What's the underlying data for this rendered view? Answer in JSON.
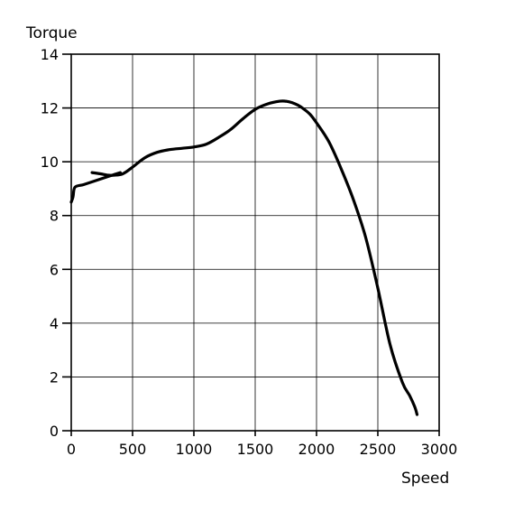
{
  "chart_data": {
    "type": "line",
    "xlabel": "Speed",
    "ylabel": "Torque",
    "xlim": [
      0,
      3000
    ],
    "ylim": [
      0,
      14
    ],
    "xticks": [
      0,
      500,
      1000,
      1500,
      2000,
      2500,
      3000
    ],
    "yticks": [
      0,
      2,
      4,
      6,
      8,
      10,
      12,
      14
    ],
    "grid": true,
    "line_color": "#000000",
    "series": [
      {
        "x": [
          170,
          240,
          300,
          350,
          420,
          500,
          600,
          700,
          800,
          900,
          1000,
          1100,
          1200,
          1300,
          1400,
          1500,
          1600,
          1700,
          1750,
          1800,
          1850,
          1900,
          1950,
          2000,
          2100,
          2200,
          2300,
          2400,
          2500,
          2600,
          2700,
          2760,
          2800,
          2820
        ],
        "y": [
          9.6,
          9.55,
          9.5,
          9.5,
          9.55,
          9.8,
          10.15,
          10.35,
          10.45,
          10.5,
          10.55,
          10.65,
          10.9,
          11.2,
          11.6,
          11.95,
          12.15,
          12.25,
          12.25,
          12.2,
          12.1,
          11.95,
          11.75,
          11.45,
          10.75,
          9.75,
          8.6,
          7.2,
          5.3,
          3.2,
          1.8,
          1.3,
          0.9,
          0.6
        ]
      },
      {
        "x": [
          0,
          15,
          30,
          100,
          200,
          300,
          400
        ],
        "y": [
          8.5,
          8.7,
          9.05,
          9.15,
          9.3,
          9.45,
          9.6
        ]
      }
    ]
  }
}
